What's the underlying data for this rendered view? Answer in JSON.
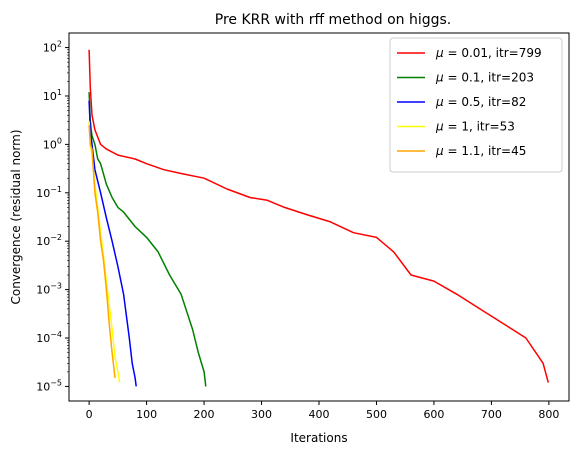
{
  "chart_data": {
    "type": "line",
    "title": "Pre KRR with rff method on higgs.",
    "xlabel": "Iterations",
    "ylabel": "Convergence (residual norm)",
    "xlim": [
      -35,
      835
    ],
    "ylim": [
      5e-06,
      200
    ],
    "yscale": "log",
    "xticks": [
      0,
      100,
      200,
      300,
      400,
      500,
      600,
      700,
      800
    ],
    "yticks": [
      {
        "base": "10",
        "exp": "−5",
        "value": 1e-05
      },
      {
        "base": "10",
        "exp": "−4",
        "value": 0.0001
      },
      {
        "base": "10",
        "exp": "−3",
        "value": 0.001
      },
      {
        "base": "10",
        "exp": "−2",
        "value": 0.01
      },
      {
        "base": "10",
        "exp": "−1",
        "value": 0.1
      },
      {
        "base": "10",
        "exp": "0",
        "value": 1
      },
      {
        "base": "10",
        "exp": "1",
        "value": 10
      },
      {
        "base": "10",
        "exp": "2",
        "value": 100
      }
    ],
    "grid": false,
    "legend_position": "top-right",
    "series": [
      {
        "name": "μ = 0.01, itr=799",
        "mu": "0.01",
        "itr": "799",
        "color": "#ff0000",
        "x": [
          0,
          2,
          5,
          10,
          20,
          30,
          50,
          80,
          100,
          130,
          160,
          200,
          240,
          280,
          310,
          340,
          380,
          420,
          460,
          500,
          530,
          560,
          600,
          640,
          680,
          720,
          760,
          790,
          799
        ],
        "y": [
          90,
          15,
          4,
          2,
          1,
          0.8,
          0.6,
          0.5,
          0.4,
          0.3,
          0.25,
          0.2,
          0.12,
          0.08,
          0.07,
          0.05,
          0.035,
          0.025,
          0.015,
          0.012,
          0.006,
          0.002,
          0.0015,
          0.0008,
          0.0004,
          0.0002,
          0.0001,
          3e-05,
          1.2e-05
        ]
      },
      {
        "name": "μ = 0.1, itr=203",
        "mu": "0.1",
        "itr": "203",
        "color": "#008000",
        "x": [
          0,
          2,
          5,
          10,
          15,
          20,
          30,
          40,
          50,
          60,
          80,
          100,
          120,
          140,
          160,
          180,
          190,
          200,
          203
        ],
        "y": [
          12,
          3,
          1.5,
          1,
          0.5,
          0.4,
          0.15,
          0.08,
          0.05,
          0.04,
          0.02,
          0.012,
          0.006,
          0.002,
          0.0008,
          0.00015,
          5e-05,
          2e-05,
          1e-05
        ]
      },
      {
        "name": "μ = 0.5, itr=82",
        "mu": "0.5",
        "itr": "82",
        "color": "#0000ff",
        "x": [
          0,
          2,
          5,
          10,
          20,
          30,
          40,
          50,
          60,
          70,
          75,
          80,
          82
        ],
        "y": [
          8,
          2,
          1,
          0.3,
          0.1,
          0.03,
          0.01,
          0.003,
          0.0008,
          0.0001,
          3e-05,
          1.5e-05,
          1e-05
        ]
      },
      {
        "name": "μ = 1, itr=53",
        "mu": "1",
        "itr": "53",
        "color": "#ffff00",
        "x": [
          0,
          2,
          5,
          10,
          15,
          20,
          25,
          30,
          35,
          40,
          45,
          50,
          53
        ],
        "y": [
          3,
          1,
          0.6,
          0.15,
          0.05,
          0.015,
          0.005,
          0.0015,
          0.0005,
          0.00015,
          4e-05,
          2e-05,
          1.2e-05
        ]
      },
      {
        "name": "μ = 1.1, itr=45",
        "mu": "1.1",
        "itr": "45",
        "color": "#ffa500",
        "x": [
          0,
          2,
          5,
          10,
          15,
          20,
          25,
          30,
          35,
          40,
          45
        ],
        "y": [
          2.5,
          1,
          0.8,
          0.1,
          0.04,
          0.01,
          0.004,
          0.001,
          0.0002,
          5e-05,
          1.5e-05
        ]
      }
    ]
  }
}
